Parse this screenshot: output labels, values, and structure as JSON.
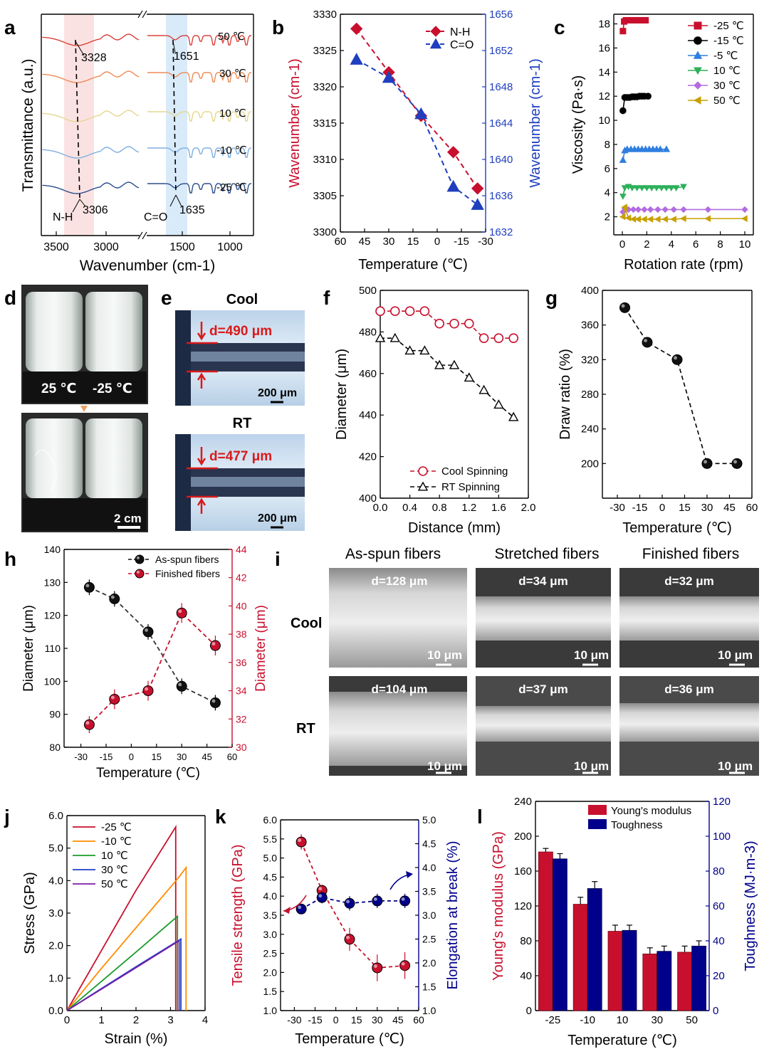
{
  "panel_letters": [
    "a",
    "b",
    "c",
    "d",
    "e",
    "f",
    "g",
    "h",
    "i",
    "j",
    "k",
    "l"
  ],
  "colors": {
    "red": "#c8102e",
    "blue": "#1f3fbf",
    "black": "#000000",
    "orange": "#ff8c00",
    "green": "#1a9b2b",
    "purple": "#7b1fa2",
    "lightblue": "#2f7ee0",
    "violet": "#b36be0",
    "gold": "#c8a000",
    "navy": "#00008b",
    "photo_red": "#d91a1a"
  },
  "panel_a": {
    "xlabel": "Wavenumber (cm-1)",
    "ylabel": "Transmittance (a.u.)",
    "xticks": [
      "3500",
      "3000",
      "1500",
      "1000"
    ],
    "temps": [
      "50 ℃",
      "30 ℃",
      "10 ℃",
      "-10 ℃",
      "-25 ℃"
    ],
    "annotations": {
      "nh_top": "3328",
      "nh_bottom": "3306",
      "co_top": "1651",
      "co_bottom": "1635",
      "nh_label": "N-H",
      "co_label": "C=O"
    }
  },
  "chart_data": [
    {
      "panel": "b",
      "type": "line",
      "xlabel": "Temperature (℃)",
      "ylabel": "Wavenumber (cm-1)",
      "ylabel_right": "Wavenumber (cm-1)",
      "x": [
        50,
        30,
        10,
        -10,
        -25
      ],
      "series": [
        {
          "name": "N-H",
          "axis": "left",
          "values": [
            3328,
            3322,
            3316,
            3311,
            3306
          ]
        },
        {
          "name": "C=O",
          "axis": "right",
          "values": [
            1651,
            1649,
            1645,
            1637,
            1635
          ]
        }
      ],
      "xlim": [
        60,
        -30
      ],
      "ylim": [
        3300,
        3330
      ],
      "ylim_right": [
        1632,
        1656
      ],
      "xticks": [
        "60",
        "45",
        "30",
        "15",
        "0",
        "-15",
        "-30"
      ],
      "yticks": [
        "3300",
        "3305",
        "3310",
        "3315",
        "3320",
        "3325",
        "3330"
      ],
      "yticks_right": [
        "1632",
        "1636",
        "1640",
        "1644",
        "1648",
        "1652",
        "1656"
      ]
    },
    {
      "panel": "c",
      "type": "scatter",
      "xlabel": "Rotation rate (rpm)",
      "ylabel": "Viscosity (Pa·s)",
      "xlim": [
        0,
        10
      ],
      "ylim": [
        0,
        18
      ],
      "xticks": [
        "0",
        "2",
        "4",
        "6",
        "8",
        "10"
      ],
      "yticks": [
        "2",
        "4",
        "6",
        "8",
        "10",
        "12",
        "14",
        "16",
        "18"
      ],
      "series": [
        {
          "name": "-25 ℃",
          "x": [
            0.05,
            0.15,
            0.3,
            0.5,
            0.7,
            0.9,
            1.1,
            1.3,
            1.5,
            1.7,
            1.9
          ],
          "values": [
            17.4,
            18.2,
            18.3,
            18.3,
            18.3,
            18.3,
            18.3,
            18.3,
            18.3,
            18.3,
            18.3
          ]
        },
        {
          "name": "-15 ℃",
          "x": [
            0.05,
            0.2,
            0.4,
            0.6,
            0.8,
            1.0,
            1.2,
            1.4,
            1.6,
            1.8,
            2.1
          ],
          "values": [
            10.8,
            11.9,
            11.9,
            11.9,
            11.95,
            11.95,
            11.95,
            12.0,
            12.0,
            12.0,
            12.0
          ]
        },
        {
          "name": "-5 ℃",
          "x": [
            0.05,
            0.2,
            0.4,
            0.7,
            1.0,
            1.3,
            1.6,
            1.9,
            2.2,
            2.5,
            2.8,
            3.1,
            3.6
          ],
          "values": [
            6.7,
            7.5,
            7.6,
            7.6,
            7.6,
            7.6,
            7.6,
            7.6,
            7.6,
            7.6,
            7.6,
            7.6,
            7.6
          ]
        },
        {
          "name": "10 ℃",
          "x": [
            0.05,
            0.2,
            0.5,
            0.8,
            1.2,
            1.6,
            2.0,
            2.4,
            2.8,
            3.2,
            3.6,
            4.0,
            4.4,
            5.0
          ],
          "values": [
            3.7,
            4.4,
            4.5,
            4.4,
            4.4,
            4.4,
            4.4,
            4.4,
            4.4,
            4.4,
            4.4,
            4.4,
            4.4,
            4.5
          ]
        },
        {
          "name": "30 ℃",
          "x": [
            0.05,
            0.2,
            0.5,
            0.9,
            1.3,
            1.8,
            2.3,
            2.9,
            3.5,
            4.2,
            5.0,
            7.0,
            10.0
          ],
          "values": [
            2.4,
            2.7,
            2.6,
            2.6,
            2.6,
            2.6,
            2.6,
            2.6,
            2.6,
            2.6,
            2.6,
            2.6,
            2.6
          ]
        },
        {
          "name": "50 ℃",
          "x": [
            0.05,
            0.2,
            0.5,
            0.9,
            1.3,
            1.8,
            2.3,
            2.9,
            3.5,
            4.2,
            5.0,
            7.0,
            10.0
          ],
          "values": [
            2.0,
            2.8,
            1.9,
            1.8,
            1.8,
            1.8,
            1.8,
            1.8,
            1.8,
            1.8,
            1.85,
            1.85,
            1.85
          ]
        }
      ]
    },
    {
      "panel": "f",
      "type": "line",
      "xlabel": "Distance (mm)",
      "ylabel": "Diameter (μm)",
      "xlim": [
        0,
        2.0
      ],
      "ylim": [
        400,
        500
      ],
      "xticks": [
        "0.0",
        "0.4",
        "0.8",
        "1.2",
        "1.6",
        "2.0"
      ],
      "yticks": [
        "400",
        "420",
        "440",
        "460",
        "480",
        "500"
      ],
      "series": [
        {
          "name": "Cool Spinning",
          "x": [
            0,
            0.2,
            0.4,
            0.6,
            0.8,
            1.0,
            1.2,
            1.4,
            1.6,
            1.8
          ],
          "values": [
            490,
            490,
            490,
            490,
            484,
            484,
            484,
            477,
            477,
            477
          ]
        },
        {
          "name": "RT Spinning",
          "x": [
            0,
            0.2,
            0.4,
            0.6,
            0.8,
            1.0,
            1.2,
            1.4,
            1.6,
            1.8
          ],
          "values": [
            477,
            477,
            471,
            471,
            464,
            464,
            458,
            452,
            445,
            439
          ]
        }
      ]
    },
    {
      "panel": "g",
      "type": "line",
      "xlabel": "Temperature (℃)",
      "ylabel": "Draw ratio (%)",
      "xlim": [
        -40,
        60
      ],
      "ylim": [
        160,
        400
      ],
      "xticks": [
        "-30",
        "-15",
        "0",
        "15",
        "30",
        "45",
        "60"
      ],
      "yticks": [
        "200",
        "240",
        "280",
        "320",
        "360",
        "400"
      ],
      "x": [
        -25,
        -10,
        10,
        30,
        50
      ],
      "values": [
        380,
        340,
        320,
        200,
        200
      ]
    },
    {
      "panel": "h",
      "type": "line",
      "xlabel": "Temperature (℃)",
      "ylabel": "Diameter (μm)",
      "ylabel_right": "Diameter (μm)",
      "xlim": [
        -40,
        60
      ],
      "ylim": [
        80,
        140
      ],
      "ylim_right": [
        30,
        44
      ],
      "xticks": [
        "-30",
        "-15",
        "0",
        "15",
        "30",
        "45",
        "60"
      ],
      "yticks": [
        "80",
        "90",
        "100",
        "110",
        "120",
        "130",
        "140"
      ],
      "yticks_right": [
        "30",
        "32",
        "34",
        "36",
        "38",
        "40",
        "42",
        "44"
      ],
      "x": [
        -25,
        -10,
        10,
        30,
        50
      ],
      "series": [
        {
          "name": "As-spun fibers",
          "axis": "left",
          "values": [
            128.5,
            125,
            115,
            98.5,
            93.5
          ],
          "errors": [
            1.5,
            1.5,
            1.5,
            1.5,
            1.5
          ]
        },
        {
          "name": "Finished fibers",
          "axis": "right",
          "values": [
            31.6,
            33.4,
            34.0,
            39.5,
            37.2
          ],
          "errors": [
            0.4,
            0.5,
            0.5,
            0.5,
            0.5
          ]
        }
      ]
    },
    {
      "panel": "j",
      "type": "line",
      "xlabel": "Strain (%)",
      "ylabel": "Stress (GPa)",
      "xlim": [
        0,
        4
      ],
      "ylim": [
        0,
        6
      ],
      "xticks": [
        "0",
        "1",
        "2",
        "3",
        "4"
      ],
      "yticks": [
        "0.0",
        "1.0",
        "2.0",
        "3.0",
        "4.0",
        "5.0",
        "6.0"
      ],
      "series": [
        {
          "name": "-25 ℃",
          "x": [
            0,
            1.0,
            2.0,
            3.15,
            3.15
          ],
          "values": [
            0,
            1.85,
            3.7,
            5.65,
            0
          ]
        },
        {
          "name": "-10 ℃",
          "x": [
            0,
            1.0,
            2.0,
            3.2,
            3.45,
            3.45
          ],
          "values": [
            0,
            1.3,
            2.55,
            4.05,
            4.4,
            0
          ]
        },
        {
          "name": "10 ℃",
          "x": [
            0,
            1.0,
            2.0,
            3.2,
            3.2
          ],
          "values": [
            0,
            0.9,
            1.8,
            2.9,
            0
          ]
        },
        {
          "name": "30 ℃",
          "x": [
            0,
            1.0,
            2.0,
            3.3,
            3.3
          ],
          "values": [
            0,
            0.68,
            1.35,
            2.2,
            0
          ]
        },
        {
          "name": "50 ℃",
          "x": [
            0,
            1.0,
            2.0,
            3.25,
            3.25
          ],
          "values": [
            0,
            0.66,
            1.32,
            2.15,
            0
          ]
        }
      ]
    },
    {
      "panel": "k",
      "type": "line",
      "xlabel": "Temperature (℃)",
      "ylabel": "Tensile strength (GPa)",
      "ylabel_right": "Elongation at break (%)",
      "xlim": [
        -40,
        60
      ],
      "ylim": [
        1.0,
        6.0
      ],
      "ylim_right": [
        1.0,
        5.0
      ],
      "xticks": [
        "-30",
        "-15",
        "0",
        "15",
        "30",
        "45",
        "60"
      ],
      "yticks": [
        "1.0",
        "1.5",
        "2.0",
        "2.5",
        "3.0",
        "3.5",
        "4.0",
        "4.5",
        "5.0",
        "5.5",
        "6.0"
      ],
      "yticks_right": [
        "1.0",
        "1.5",
        "2.0",
        "2.5",
        "3.0",
        "3.5",
        "4.0",
        "4.5",
        "5.0"
      ],
      "x": [
        -25,
        -10,
        10,
        30,
        50
      ],
      "series": [
        {
          "name": "Tensile strength",
          "axis": "left",
          "values": [
            5.42,
            4.15,
            2.87,
            2.12,
            2.18
          ],
          "errors": [
            0.2,
            0.15,
            0.3,
            0.35,
            0.35
          ]
        },
        {
          "name": "Elongation at break",
          "axis": "right",
          "values": [
            3.13,
            3.37,
            3.25,
            3.3,
            3.3
          ],
          "errors": [
            0.08,
            0.12,
            0.15,
            0.15,
            0.15
          ]
        }
      ]
    },
    {
      "panel": "l",
      "type": "bar",
      "xlabel": "Temperature (℃)",
      "ylabel": "Young's modulus (GPa)",
      "ylabel_right": "Toughness (MJ·m-3)",
      "categories": [
        "-25",
        "-10",
        "10",
        "30",
        "50"
      ],
      "ylim": [
        0,
        240
      ],
      "ylim_right": [
        0,
        120
      ],
      "yticks": [
        "0",
        "40",
        "80",
        "120",
        "160",
        "200",
        "240"
      ],
      "yticks_right": [
        "0",
        "20",
        "40",
        "60",
        "80",
        "100",
        "120"
      ],
      "series": [
        {
          "name": "Young's modulus",
          "axis": "left",
          "values": [
            182,
            122,
            91,
            65,
            67
          ],
          "errors": [
            4,
            8,
            7,
            7,
            7
          ]
        },
        {
          "name": "Toughness",
          "axis": "right",
          "values": [
            87,
            70,
            46,
            34,
            37
          ],
          "errors": [
            3,
            4,
            3,
            3,
            3
          ]
        }
      ]
    }
  ],
  "panel_d": {
    "label_left": "25 ℃",
    "label_right": "-25 ℃",
    "scale": "2 cm"
  },
  "panel_e": {
    "cool_title": "Cool",
    "rt_title": "RT",
    "cool_d": "d=490 μm",
    "rt_d": "d=477 μm",
    "scale": "200 μm"
  },
  "panel_i": {
    "columns": [
      "As-spun fibers",
      "Stretched fibers",
      "Finished fibers"
    ],
    "rows": [
      "Cool",
      "RT"
    ],
    "cool_d": [
      "d=128 μm",
      "d=34 μm",
      "d=32 μm"
    ],
    "rt_d": [
      "d=104 μm",
      "d=37 μm",
      "d=36 μm"
    ],
    "scale": "10 μm"
  }
}
